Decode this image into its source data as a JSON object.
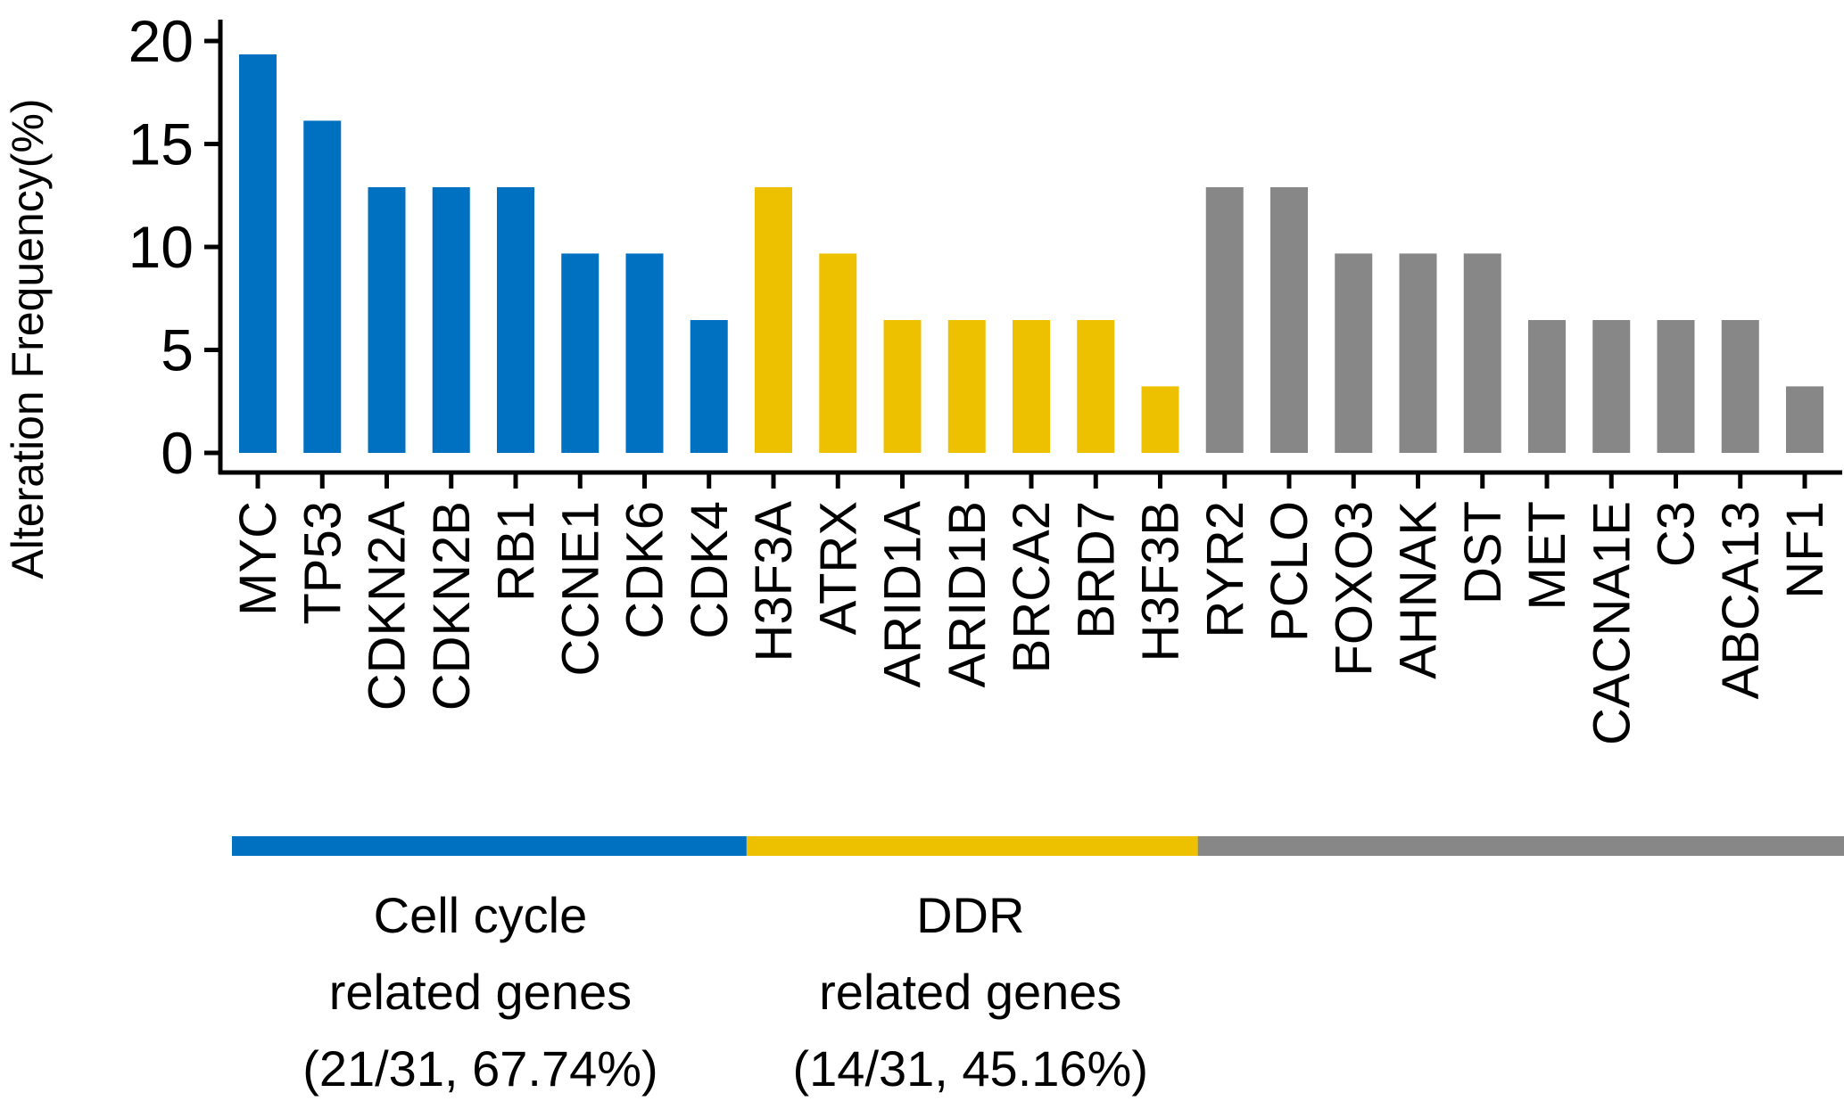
{
  "chart_data": {
    "type": "bar",
    "title": "",
    "xlabel": "",
    "ylabel": "Alteration Frequency(%)",
    "ylim": [
      0,
      20
    ],
    "yticks": [
      "0",
      "5",
      "10",
      "15",
      "20"
    ],
    "categories": [
      "MYC",
      "TP53",
      "CDKN2A",
      "CDKN2B",
      "RB1",
      "CCNE1",
      "CDK6",
      "CDK4",
      "H3F3A",
      "ATRX",
      "ARID1A",
      "ARID1B",
      "BRCA2",
      "BRD7",
      "H3F3B",
      "RYR2",
      "PCLO",
      "FOXO3",
      "AHNAK",
      "DST",
      "MET",
      "CACNA1E",
      "C3",
      "ABCA13",
      "NF1"
    ],
    "values": [
      19.35,
      16.13,
      12.9,
      12.9,
      12.9,
      9.68,
      9.68,
      6.45,
      12.9,
      9.68,
      6.45,
      6.45,
      6.45,
      6.45,
      3.23,
      12.9,
      12.9,
      9.68,
      9.68,
      9.68,
      6.45,
      6.45,
      6.45,
      6.45,
      3.23
    ],
    "groups": [
      {
        "key": "cell_cycle",
        "count": 8,
        "color": "#0070c0",
        "lines": [
          "Cell cycle",
          "related genes",
          "(21/31, 67.74%)"
        ]
      },
      {
        "key": "ddr",
        "count": 7,
        "color": "#edc000",
        "lines": [
          "DDR",
          "related genes",
          "(14/31, 45.16%)"
        ]
      },
      {
        "key": "other",
        "count": 10,
        "color": "#878787",
        "lines": []
      }
    ],
    "grid": false
  }
}
